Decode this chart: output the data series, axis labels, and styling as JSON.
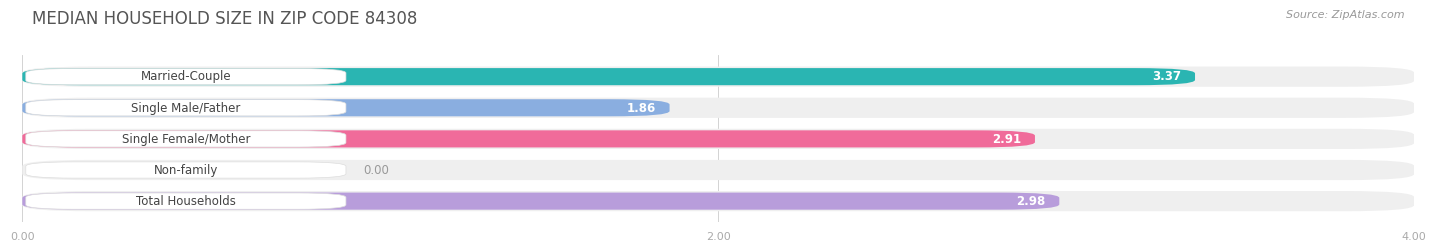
{
  "title": "MEDIAN HOUSEHOLD SIZE IN ZIP CODE 84308",
  "source": "Source: ZipAtlas.com",
  "categories": [
    "Married-Couple",
    "Single Male/Father",
    "Single Female/Mother",
    "Non-family",
    "Total Households"
  ],
  "values": [
    3.37,
    1.86,
    2.91,
    0.0,
    2.98
  ],
  "bar_colors": [
    "#2ab5b2",
    "#8aaee0",
    "#f06b9a",
    "#f8c89a",
    "#b89ddb"
  ],
  "bar_track_color": "#efefef",
  "title_color": "#555555",
  "source_color": "#999999",
  "xlim": [
    0,
    4.0
  ],
  "xticks": [
    0.0,
    2.0,
    4.0
  ],
  "xtick_labels": [
    "0.00",
    "2.00",
    "4.00"
  ],
  "background_color": "#ffffff",
  "title_fontsize": 12,
  "label_fontsize": 8.5,
  "value_fontsize": 8.5,
  "source_fontsize": 8
}
